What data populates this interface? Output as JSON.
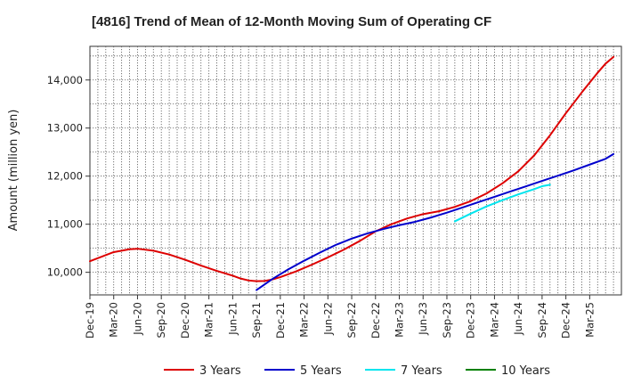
{
  "chart_data": {
    "type": "line",
    "title": "[4816]  Trend of Mean of 12-Month Moving Sum of Operating CF",
    "xlabel": "",
    "ylabel": "Amount (million yen)",
    "ylim": [
      9530,
      14700
    ],
    "y_ticks": [
      10000,
      11000,
      12000,
      13000,
      14000
    ],
    "y_tick_labels": [
      "10,000",
      "11,000",
      "12,000",
      "13,000",
      "14,000"
    ],
    "x_range": [
      0,
      67
    ],
    "x_tick_labels": [
      "Dec-19",
      "Mar-20",
      "Jun-20",
      "Sep-20",
      "Dec-20",
      "Mar-21",
      "Jun-21",
      "Sep-21",
      "Dec-21",
      "Mar-22",
      "Jun-22",
      "Sep-22",
      "Dec-22",
      "Mar-23",
      "Jun-23",
      "Sep-23",
      "Dec-23",
      "Mar-24",
      "Jun-24",
      "Sep-24",
      "Dec-24",
      "Mar-25"
    ],
    "grid": true,
    "legend_position": "bottom",
    "series": [
      {
        "name": "3 Years",
        "color": "#dd0000",
        "points": [
          [
            0,
            10230
          ],
          [
            3,
            10420
          ],
          [
            5,
            10480
          ],
          [
            6,
            10490
          ],
          [
            8,
            10450
          ],
          [
            10,
            10370
          ],
          [
            12,
            10260
          ],
          [
            14,
            10140
          ],
          [
            16,
            10030
          ],
          [
            18,
            9930
          ],
          [
            19,
            9870
          ],
          [
            20,
            9830
          ],
          [
            21,
            9815
          ],
          [
            22,
            9820
          ],
          [
            23,
            9850
          ],
          [
            24,
            9900
          ],
          [
            26,
            10020
          ],
          [
            28,
            10160
          ],
          [
            30,
            10310
          ],
          [
            32,
            10470
          ],
          [
            34,
            10650
          ],
          [
            36,
            10850
          ],
          [
            38,
            11000
          ],
          [
            40,
            11120
          ],
          [
            42,
            11210
          ],
          [
            44,
            11270
          ],
          [
            46,
            11360
          ],
          [
            48,
            11480
          ],
          [
            50,
            11640
          ],
          [
            52,
            11850
          ],
          [
            54,
            12100
          ],
          [
            56,
            12430
          ],
          [
            58,
            12850
          ],
          [
            60,
            13310
          ],
          [
            62,
            13740
          ],
          [
            64,
            14150
          ],
          [
            65,
            14340
          ],
          [
            66,
            14480
          ]
        ]
      },
      {
        "name": "5 Years",
        "color": "#0000cc",
        "points": [
          [
            21,
            9630
          ],
          [
            23,
            9860
          ],
          [
            25,
            10060
          ],
          [
            27,
            10240
          ],
          [
            29,
            10410
          ],
          [
            31,
            10570
          ],
          [
            33,
            10700
          ],
          [
            35,
            10810
          ],
          [
            37,
            10900
          ],
          [
            39,
            10980
          ],
          [
            41,
            11050
          ],
          [
            43,
            11140
          ],
          [
            45,
            11240
          ],
          [
            47,
            11350
          ],
          [
            49,
            11460
          ],
          [
            51,
            11570
          ],
          [
            53,
            11680
          ],
          [
            55,
            11790
          ],
          [
            57,
            11900
          ],
          [
            59,
            12010
          ],
          [
            61,
            12120
          ],
          [
            63,
            12240
          ],
          [
            65,
            12360
          ],
          [
            66,
            12460
          ]
        ]
      },
      {
        "name": "7 Years",
        "color": "#00e5ee",
        "points": [
          [
            46,
            11060
          ],
          [
            48,
            11220
          ],
          [
            50,
            11370
          ],
          [
            52,
            11500
          ],
          [
            54,
            11620
          ],
          [
            56,
            11730
          ],
          [
            57,
            11790
          ],
          [
            58,
            11820
          ]
        ]
      },
      {
        "name": "10 Years",
        "color": "#008000",
        "points": []
      }
    ]
  }
}
